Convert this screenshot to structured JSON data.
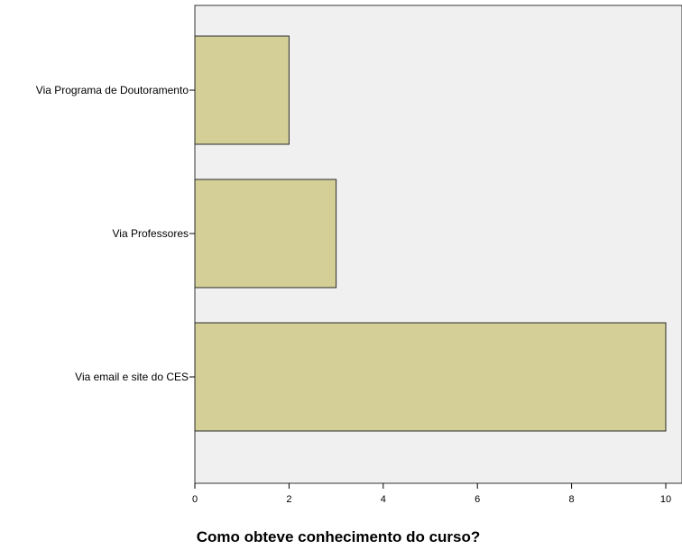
{
  "chart_data": {
    "type": "bar",
    "orientation": "horizontal",
    "categories": [
      "Via Programa de Doutoramento",
      "Via Professores",
      "Via email e site do CES"
    ],
    "values": [
      2,
      3,
      10
    ],
    "xlabel": "Como obteve conhecimento do curso?",
    "ylabel": "",
    "xlim": [
      0,
      10
    ],
    "xticks": [
      0,
      2,
      4,
      6,
      8,
      10
    ],
    "grid": false,
    "colors": {
      "bar_fill": "#d3cf96",
      "bar_stroke": "#2a2a2a",
      "plot_bg": "#f0f0f0"
    }
  }
}
